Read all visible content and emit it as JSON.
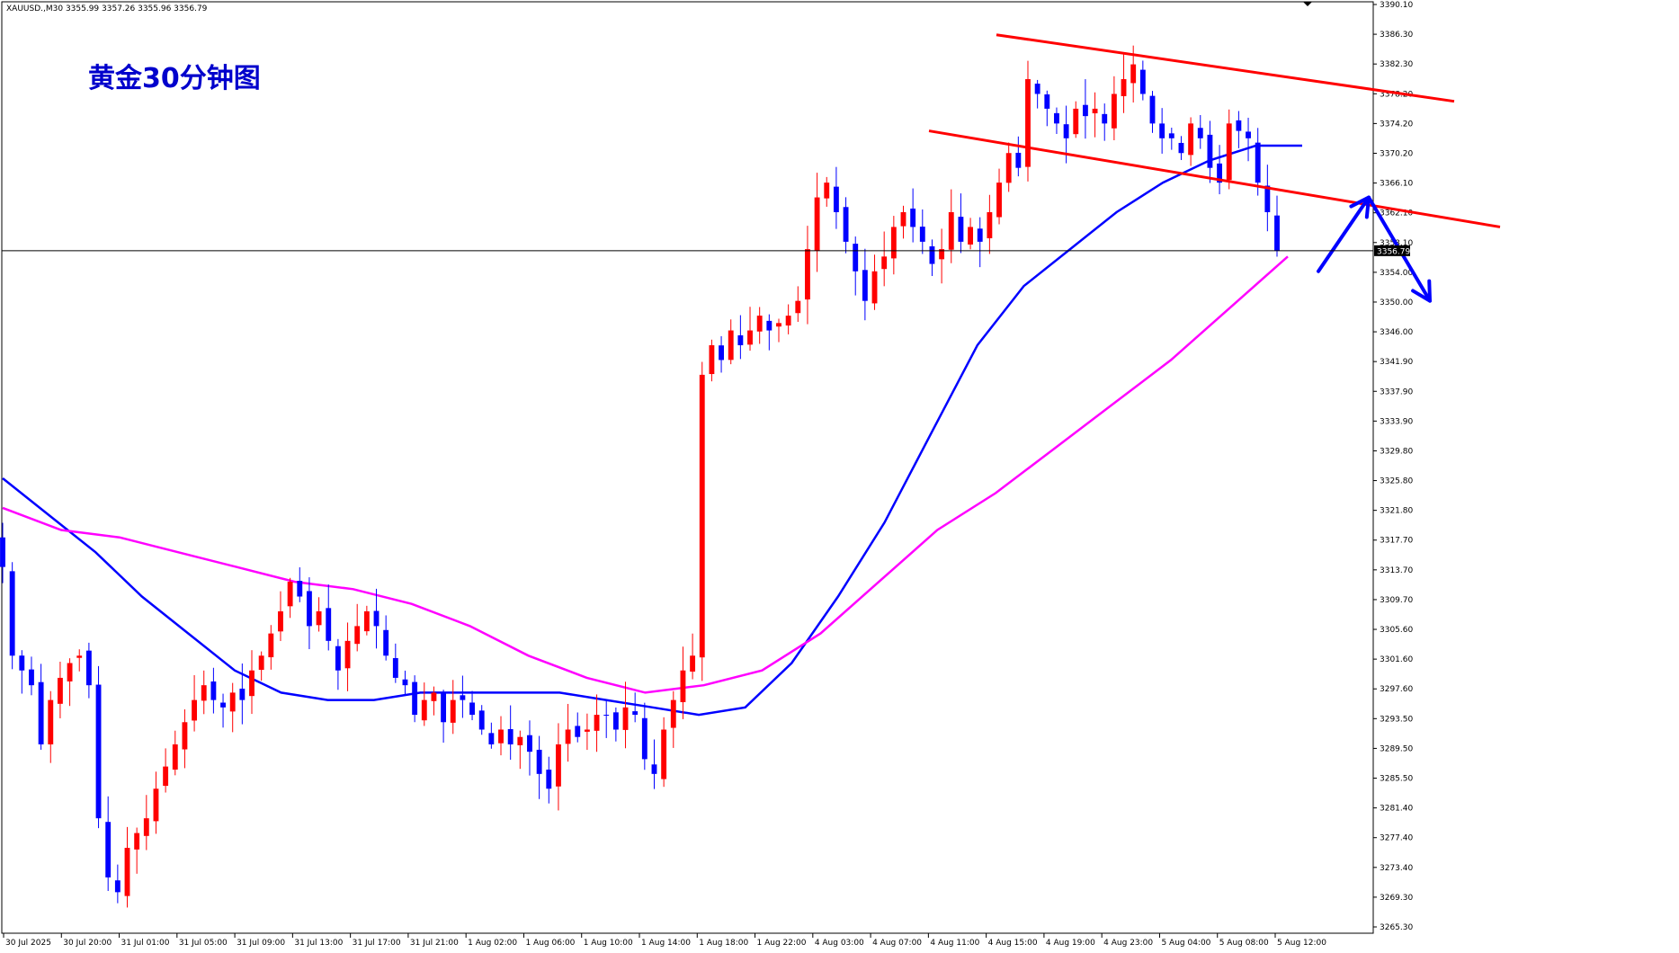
{
  "header": {
    "symbol_line": "XAUUSD.,M30  3355.99 3357.26 3355.96 3356.79"
  },
  "annotation": {
    "title": "黄金30分钟图"
  },
  "colors": {
    "up": "#ff0000",
    "down": "#0000ff",
    "ma_fast": "#0000ff",
    "ma_slow": "#ff00ff",
    "channel": "#ff0000",
    "arrow": "#0000ff",
    "price_line": "#000000",
    "axis": "#000000",
    "title": "#0000cc"
  },
  "chart_data": {
    "type": "candlestick",
    "symbol": "XAUUSD.",
    "timeframe": "M30",
    "last_price": "3356.79",
    "ylim": [
      3265.3,
      3390.1
    ],
    "y_ticks": [
      "3390.10",
      "3386.30",
      "3382.30",
      "3378.20",
      "3374.20",
      "3370.20",
      "3366.10",
      "3362.10",
      "3358.10",
      "3354.00",
      "3350.00",
      "3346.00",
      "3341.90",
      "3337.90",
      "3333.90",
      "3329.80",
      "3325.80",
      "3321.80",
      "3317.70",
      "3313.70",
      "3309.70",
      "3305.60",
      "3301.60",
      "3297.60",
      "3293.50",
      "3289.50",
      "3285.50",
      "3281.40",
      "3277.40",
      "3273.40",
      "3269.30",
      "3265.30"
    ],
    "x_ticks": [
      "30 Jul 2025",
      "30 Jul 20:00",
      "31 Jul 01:00",
      "31 Jul 05:00",
      "31 Jul 09:00",
      "31 Jul 13:00",
      "31 Jul 17:00",
      "31 Jul 21:00",
      "1 Aug 02:00",
      "1 Aug 06:00",
      "1 Aug 10:00",
      "1 Aug 14:00",
      "1 Aug 18:00",
      "1 Aug 22:00",
      "4 Aug 03:00",
      "4 Aug 07:00",
      "4 Aug 11:00",
      "4 Aug 15:00",
      "4 Aug 19:00",
      "4 Aug 23:00",
      "5 Aug 04:00",
      "5 Aug 08:00",
      "5 Aug 12:00"
    ],
    "candle_close_path": [
      3314,
      3302,
      3300,
      3298,
      3290,
      3296,
      3299,
      3301,
      3302,
      3298,
      3280,
      3272,
      3270,
      3276,
      3278,
      3280,
      3284,
      3287,
      3290,
      3293,
      3296,
      3298,
      3296,
      3295,
      3297,
      3296,
      3300,
      3302,
      3305,
      3308,
      3312,
      3310,
      3306,
      3308,
      3304,
      3300,
      3304,
      3306,
      3308,
      3306,
      3302,
      3299,
      3298,
      3294,
      3296,
      3297,
      3293,
      3296,
      3296,
      3294,
      3292,
      3290,
      3292,
      3290,
      3291,
      3289,
      3286,
      3284,
      3290,
      3292,
      3291,
      3292,
      3294,
      3294,
      3292,
      3295,
      3294,
      3288,
      3286,
      3292,
      3296,
      3300,
      3302,
      3340,
      3344,
      3342,
      3346,
      3344,
      3346,
      3348,
      3346,
      3347,
      3348,
      3350,
      3357,
      3364,
      3366,
      3362,
      3358,
      3354,
      3350,
      3354,
      3356,
      3360,
      3362,
      3360,
      3358,
      3355,
      3357,
      3362,
      3358,
      3360,
      3358,
      3362,
      3366,
      3370,
      3368,
      3380,
      3378,
      3376,
      3374,
      3372,
      3376,
      3375,
      3376,
      3374,
      3378,
      3380,
      3382,
      3378,
      3374,
      3372,
      3372,
      3370,
      3374,
      3372,
      3368,
      3366,
      3374,
      3373,
      3372,
      3366,
      3362,
      3356.79
    ],
    "series": [
      {
        "name": "",
        "role": "ma_fast",
        "values": [
          3326,
          3321,
          3316,
          3310,
          3305,
          3300,
          3297,
          3296,
          3296,
          3297,
          3297,
          3297,
          3297,
          3296,
          3295,
          3294,
          3295,
          3301,
          3310,
          3320,
          3332,
          3344,
          3352,
          3357,
          3362,
          3366,
          3369,
          3371,
          3371
        ]
      },
      {
        "name": "",
        "role": "ma_slow",
        "values": [
          3322,
          3319,
          3318,
          3316,
          3314,
          3312,
          3311,
          3309,
          3306,
          3302,
          3299,
          3297,
          3298,
          3300,
          3305,
          3312,
          3319,
          3324,
          3330,
          3336,
          3342,
          3349,
          3356
        ]
      }
    ],
    "channel": {
      "upper": [
        3386,
        3377
      ],
      "lower": [
        3373,
        3360
      ]
    },
    "forecast_arrows": [
      {
        "from": 3354,
        "to": 3364
      },
      {
        "from": 3364,
        "to": 3350
      }
    ],
    "title": "",
    "xlabel": "",
    "ylabel": "",
    "grid": false
  }
}
